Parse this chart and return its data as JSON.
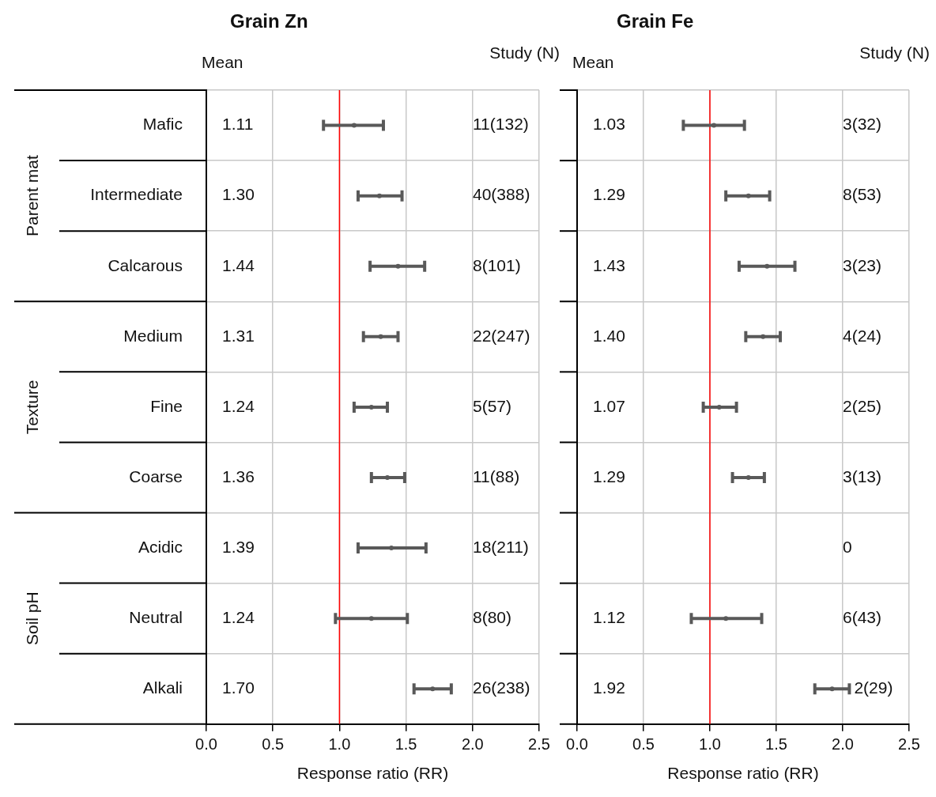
{
  "chart_data": [
    {
      "type": "scatter",
      "title": "Grain Zn",
      "xlabel": "Response ratio (RR)",
      "orientation": "horizontal",
      "marker": "circle",
      "grid": true,
      "color": "#595959",
      "categories": [
        "Mafic",
        "Intermediate",
        "Calcarous",
        "Medium",
        "Fine",
        "Coarse",
        "Acidic",
        "Neutral",
        "Alkali"
      ],
      "values": [
        1.11,
        1.3,
        1.44,
        1.31,
        1.24,
        1.36,
        1.39,
        1.24,
        1.7
      ],
      "errors": [
        [
          0.88,
          1.33
        ],
        [
          1.14,
          1.47
        ],
        [
          1.23,
          1.64
        ],
        [
          1.18,
          1.44
        ],
        [
          1.11,
          1.36
        ],
        [
          1.24,
          1.49
        ],
        [
          1.14,
          1.65
        ],
        [
          0.97,
          1.51
        ],
        [
          1.56,
          1.84
        ]
      ],
      "xlim": [
        0,
        2.5
      ],
      "xticks": [
        {
          "value": 0,
          "label": "0.0"
        },
        0.5,
        {
          "value": 1,
          "label": "1.0"
        },
        1.5,
        {
          "value": 2,
          "label": "2.0"
        },
        2.5
      ],
      "ref_lines": [
        {
          "axis": "x",
          "value": 1,
          "color": "#ff0000"
        }
      ],
      "annotations": [
        "Mean",
        "Study (N)",
        "1.11",
        "1.30",
        "1.44",
        "1.31",
        "1.24",
        "1.36",
        "1.39",
        "1.24",
        "1.70",
        "11(132)",
        "40(388)",
        "8(101)",
        "22(247)",
        "5(57)",
        "11(88)",
        "18(211)",
        "8(80)",
        "26(238)",
        "Parent mat",
        "Texture",
        "Soil pH"
      ]
    },
    {
      "type": "scatter",
      "title": "Grain Fe",
      "xlabel": "Response ratio (RR)",
      "orientation": "horizontal",
      "marker": "circle",
      "grid": true,
      "color": "#595959",
      "tick_labels": "x",
      "categories": [
        null,
        null,
        null,
        null,
        null,
        null,
        null,
        null,
        null
      ],
      "values": [
        1.03,
        1.29,
        1.43,
        1.4,
        1.07,
        1.29,
        null,
        1.12,
        1.92
      ],
      "errors": [
        [
          0.8,
          1.26
        ],
        [
          1.12,
          1.45
        ],
        [
          1.22,
          1.64
        ],
        [
          1.27,
          1.53
        ],
        [
          0.95,
          1.2
        ],
        [
          1.17,
          1.41
        ],
        null,
        [
          0.86,
          1.39
        ],
        [
          1.79,
          2.05
        ]
      ],
      "xlim": [
        0,
        2.5
      ],
      "xticks": [
        {
          "value": 0,
          "label": "0.0"
        },
        0.5,
        {
          "value": 1,
          "label": "1.0"
        },
        1.5,
        {
          "value": 2,
          "label": "2.0"
        },
        2.5
      ],
      "ref_lines": [
        {
          "axis": "x",
          "value": 1,
          "color": "#ff0000"
        }
      ],
      "annotations": [
        "Mean",
        "Study (N)",
        "1.03",
        "1.29",
        "1.43",
        "1.40",
        "1.07",
        "1.29",
        "1.12",
        "1.92",
        "3(32)",
        "8(53)",
        "3(23)",
        "4(24)",
        "2(25)",
        "3(13)",
        "0",
        "6(43)",
        "2(29)"
      ]
    }
  ]
}
